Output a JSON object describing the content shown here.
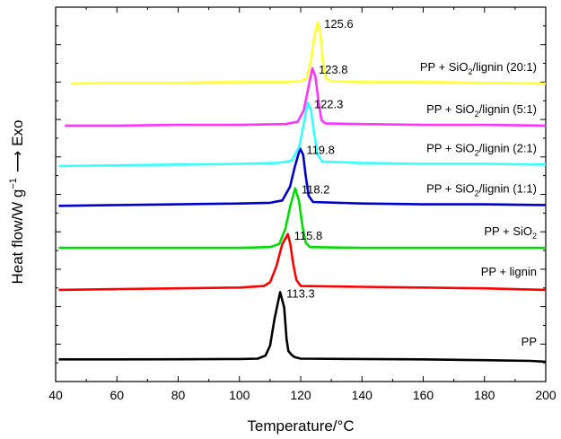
{
  "chart_data": {
    "type": "line",
    "title": "",
    "xlabel": "Temperature/°C",
    "ylabel": "Heat flow/W g",
    "ylabel_sup": "−1",
    "ylabel_direction": "Exo",
    "xlim": [
      40,
      200
    ],
    "xticks": [
      40,
      60,
      80,
      100,
      120,
      140,
      160,
      180,
      200
    ],
    "y_tick_labels_shown": false,
    "legend": "none",
    "grid": false,
    "series": [
      {
        "name": "PP",
        "label_main": "PP",
        "label_sub": "",
        "label_tail": "",
        "color": "#000000",
        "peak_temp": 113.3,
        "peak_label": "113.3",
        "points": [
          [
            41,
            0.04
          ],
          [
            60,
            0.04
          ],
          [
            80,
            0.042
          ],
          [
            100,
            0.045
          ],
          [
            106,
            0.05
          ],
          [
            108.5,
            0.09
          ],
          [
            110,
            0.22
          ],
          [
            111.5,
            0.58
          ],
          [
            113.3,
            0.92
          ],
          [
            114.6,
            0.72
          ],
          [
            115.4,
            0.3
          ],
          [
            116,
            0.15
          ],
          [
            117,
            0.1
          ],
          [
            118,
            0.07
          ],
          [
            120,
            0.05
          ],
          [
            140,
            0.045
          ],
          [
            160,
            0.04
          ],
          [
            180,
            0.03
          ],
          [
            195,
            0.02
          ],
          [
            200,
            0.01
          ]
        ]
      },
      {
        "name": "PP + lignin",
        "label_main": "PP + lignin",
        "label_sub": "",
        "label_tail": "",
        "color": "#ff0000",
        "peak_temp": 115.8,
        "peak_label": "115.8",
        "points": [
          [
            41,
            0.95
          ],
          [
            60,
            0.96
          ],
          [
            80,
            0.97
          ],
          [
            100,
            0.98
          ],
          [
            108,
            1.0
          ],
          [
            110,
            1.05
          ],
          [
            112,
            1.25
          ],
          [
            114,
            1.55
          ],
          [
            115.8,
            1.68
          ],
          [
            116.6,
            1.55
          ],
          [
            117.6,
            1.28
          ],
          [
            118.6,
            1.08
          ],
          [
            120,
            1.0
          ],
          [
            140,
            0.99
          ],
          [
            160,
            0.98
          ],
          [
            180,
            0.97
          ],
          [
            200,
            0.95
          ]
        ]
      },
      {
        "name": "PP + SiO2",
        "label_main": "PP + SiO",
        "label_sub": "2",
        "label_tail": "",
        "color": "#00dd00",
        "peak_temp": 118.2,
        "peak_label": "118.2",
        "points": [
          [
            41,
            1.5
          ],
          [
            60,
            1.5
          ],
          [
            80,
            1.5
          ],
          [
            100,
            1.5
          ],
          [
            110,
            1.51
          ],
          [
            113,
            1.55
          ],
          [
            115,
            1.75
          ],
          [
            116.6,
            2.05
          ],
          [
            118.2,
            2.28
          ],
          [
            119.4,
            2.12
          ],
          [
            120.6,
            1.78
          ],
          [
            121.6,
            1.57
          ],
          [
            123,
            1.51
          ],
          [
            140,
            1.5
          ],
          [
            160,
            1.5
          ],
          [
            180,
            1.5
          ],
          [
            200,
            1.5
          ]
        ]
      },
      {
        "name": "PP + SiO2/lignin (1:1)",
        "label_main": "PP + SiO",
        "label_sub": "2",
        "label_tail": "/lignin (1:1)",
        "color": "#0000cc",
        "peak_temp": 119.8,
        "peak_label": "119.8",
        "points": [
          [
            41,
            2.05
          ],
          [
            60,
            2.06
          ],
          [
            80,
            2.07
          ],
          [
            100,
            2.08
          ],
          [
            110,
            2.09
          ],
          [
            114,
            2.12
          ],
          [
            116.5,
            2.3
          ],
          [
            118,
            2.55
          ],
          [
            119.8,
            2.8
          ],
          [
            120.8,
            2.72
          ],
          [
            121.6,
            2.45
          ],
          [
            122.6,
            2.18
          ],
          [
            124,
            2.1
          ],
          [
            140,
            2.08
          ],
          [
            160,
            2.07
          ],
          [
            180,
            2.07
          ],
          [
            200,
            2.06
          ]
        ]
      },
      {
        "name": "PP + SiO2/lignin (2:1)",
        "label_main": "PP + SiO",
        "label_sub": "2",
        "label_tail": "/lignin (2:1)",
        "color": "#33ffff",
        "peak_temp": 122.3,
        "peak_label": "122.3",
        "points": [
          [
            41,
            2.57
          ],
          [
            60,
            2.58
          ],
          [
            80,
            2.59
          ],
          [
            100,
            2.6
          ],
          [
            112,
            2.61
          ],
          [
            117,
            2.64
          ],
          [
            119.5,
            2.82
          ],
          [
            121,
            3.12
          ],
          [
            122.3,
            3.4
          ],
          [
            123.3,
            3.32
          ],
          [
            124.3,
            3.02
          ],
          [
            125.5,
            2.72
          ],
          [
            127,
            2.63
          ],
          [
            140,
            2.61
          ],
          [
            160,
            2.6
          ],
          [
            180,
            2.6
          ],
          [
            200,
            2.59
          ]
        ]
      },
      {
        "name": "PP + SiO2/lignin (5:1)",
        "label_main": "PP + SiO",
        "label_sub": "2",
        "label_tail": "/lignin (5:1)",
        "color": "#ff33ff",
        "peak_temp": 123.8,
        "peak_label": "123.8",
        "points": [
          [
            43,
            3.1
          ],
          [
            60,
            3.1
          ],
          [
            80,
            3.11
          ],
          [
            100,
            3.11
          ],
          [
            115,
            3.12
          ],
          [
            119,
            3.15
          ],
          [
            121,
            3.3
          ],
          [
            122.6,
            3.62
          ],
          [
            123.8,
            3.85
          ],
          [
            124.8,
            3.74
          ],
          [
            125.8,
            3.42
          ],
          [
            126.8,
            3.17
          ],
          [
            128,
            3.13
          ],
          [
            140,
            3.12
          ],
          [
            160,
            3.11
          ],
          [
            180,
            3.11
          ],
          [
            200,
            3.1
          ]
        ]
      },
      {
        "name": "PP + SiO2/lignin (20:1)",
        "label_main": "PP + SiO",
        "label_sub": "2",
        "label_tail": "/lignin (20:1)",
        "color": "#ffff33",
        "peak_temp": 125.6,
        "peak_label": "125.6",
        "points": [
          [
            45,
            3.65
          ],
          [
            60,
            3.66
          ],
          [
            80,
            3.66
          ],
          [
            100,
            3.67
          ],
          [
            115,
            3.67
          ],
          [
            120,
            3.68
          ],
          [
            122,
            3.72
          ],
          [
            123.5,
            3.98
          ],
          [
            124.6,
            4.3
          ],
          [
            125.6,
            4.45
          ],
          [
            126.4,
            4.3
          ],
          [
            127.2,
            3.95
          ],
          [
            128.2,
            3.72
          ],
          [
            130,
            3.68
          ],
          [
            140,
            3.67
          ],
          [
            160,
            3.67
          ],
          [
            180,
            3.66
          ],
          [
            200,
            3.65
          ]
        ]
      }
    ]
  }
}
